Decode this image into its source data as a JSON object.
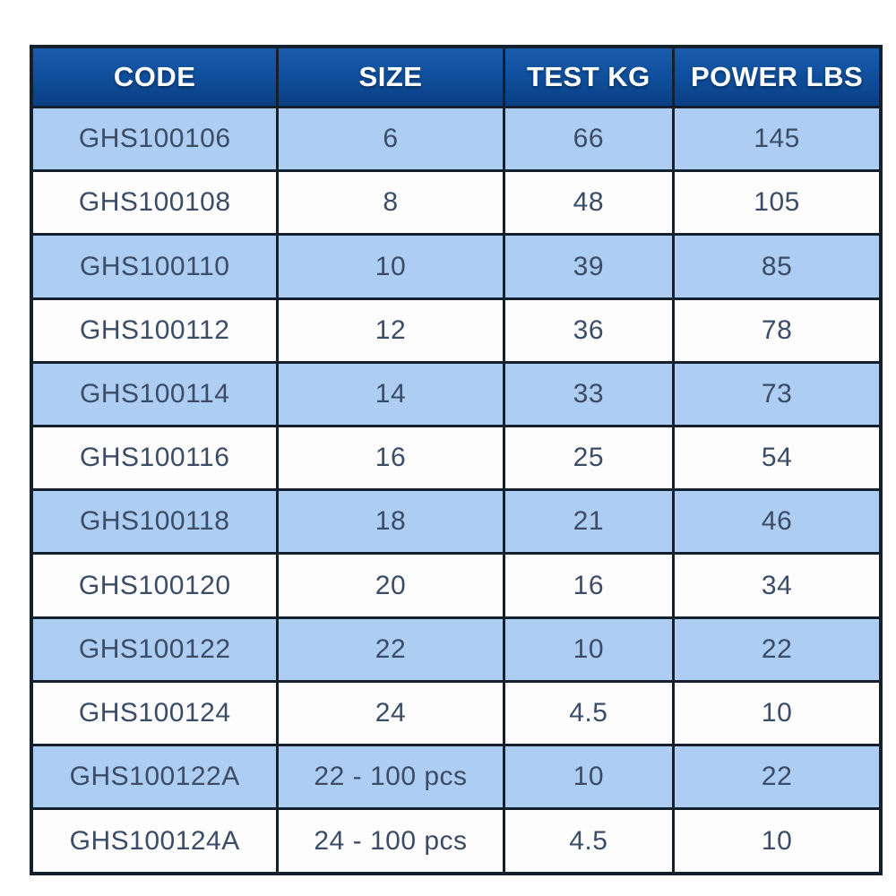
{
  "chart_data": {
    "type": "table",
    "title": "",
    "columns": [
      "CODE",
      "SIZE",
      "TEST KG",
      "POWER LBS"
    ],
    "rows": [
      [
        "GHS100106",
        "6",
        "66",
        "145"
      ],
      [
        "GHS100108",
        "8",
        "48",
        "105"
      ],
      [
        "GHS100110",
        "10",
        "39",
        "85"
      ],
      [
        "GHS100112",
        "12",
        "36",
        "78"
      ],
      [
        "GHS100114",
        "14",
        "33",
        "73"
      ],
      [
        "GHS100116",
        "16",
        "25",
        "54"
      ],
      [
        "GHS100118",
        "18",
        "21",
        "46"
      ],
      [
        "GHS100120",
        "20",
        "16",
        "34"
      ],
      [
        "GHS100122",
        "22",
        "10",
        "22"
      ],
      [
        "GHS100124",
        "24",
        "4.5",
        "10"
      ],
      [
        "GHS100122A",
        "22 - 100 pcs",
        "10",
        "22"
      ],
      [
        "GHS100124A",
        "24 - 100 pcs",
        "4.5",
        "10"
      ]
    ]
  },
  "colors": {
    "header_bg_top": "#1a5cab",
    "header_bg_mid": "#10509e",
    "header_bg_bottom": "#0b3f83",
    "header_text": "#ffffff",
    "row_alt_bg": "#aecdf3",
    "row_bg": "#fdfdfe",
    "cell_text": "#3b4c66",
    "border": "#15202e"
  }
}
